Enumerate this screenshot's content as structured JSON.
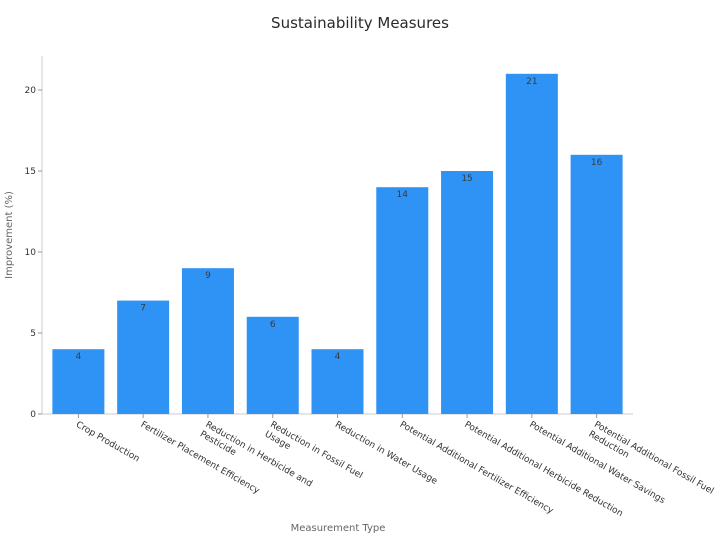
{
  "chart_data": {
    "type": "bar",
    "title": "Sustainability Measures",
    "xlabel": "Measurement Type",
    "ylabel": "Improvement (%)",
    "categories": [
      [
        "Crop Production"
      ],
      [
        "Fertilizer Placement Efficiency"
      ],
      [
        "Reduction in Herbicide and",
        "Pesticide"
      ],
      [
        "Reduction in Fossil Fuel",
        "Usage"
      ],
      [
        "Reduction in Water Usage"
      ],
      [
        "Potential Additional Fertilizer Efficiency"
      ],
      [
        "Potential Additional Herbicide Reduction"
      ],
      [
        "Potential Additional Water Savings"
      ],
      [
        "Potential Additional Fossil Fuel",
        "Reduction"
      ]
    ],
    "values": [
      4,
      7,
      9,
      6,
      4,
      14,
      15,
      21,
      16
    ],
    "ylim": [
      0,
      22
    ],
    "yticks": [
      0,
      5,
      10,
      15,
      20
    ],
    "bar_color": "#2f93f5",
    "grid": false,
    "legend": "none"
  }
}
